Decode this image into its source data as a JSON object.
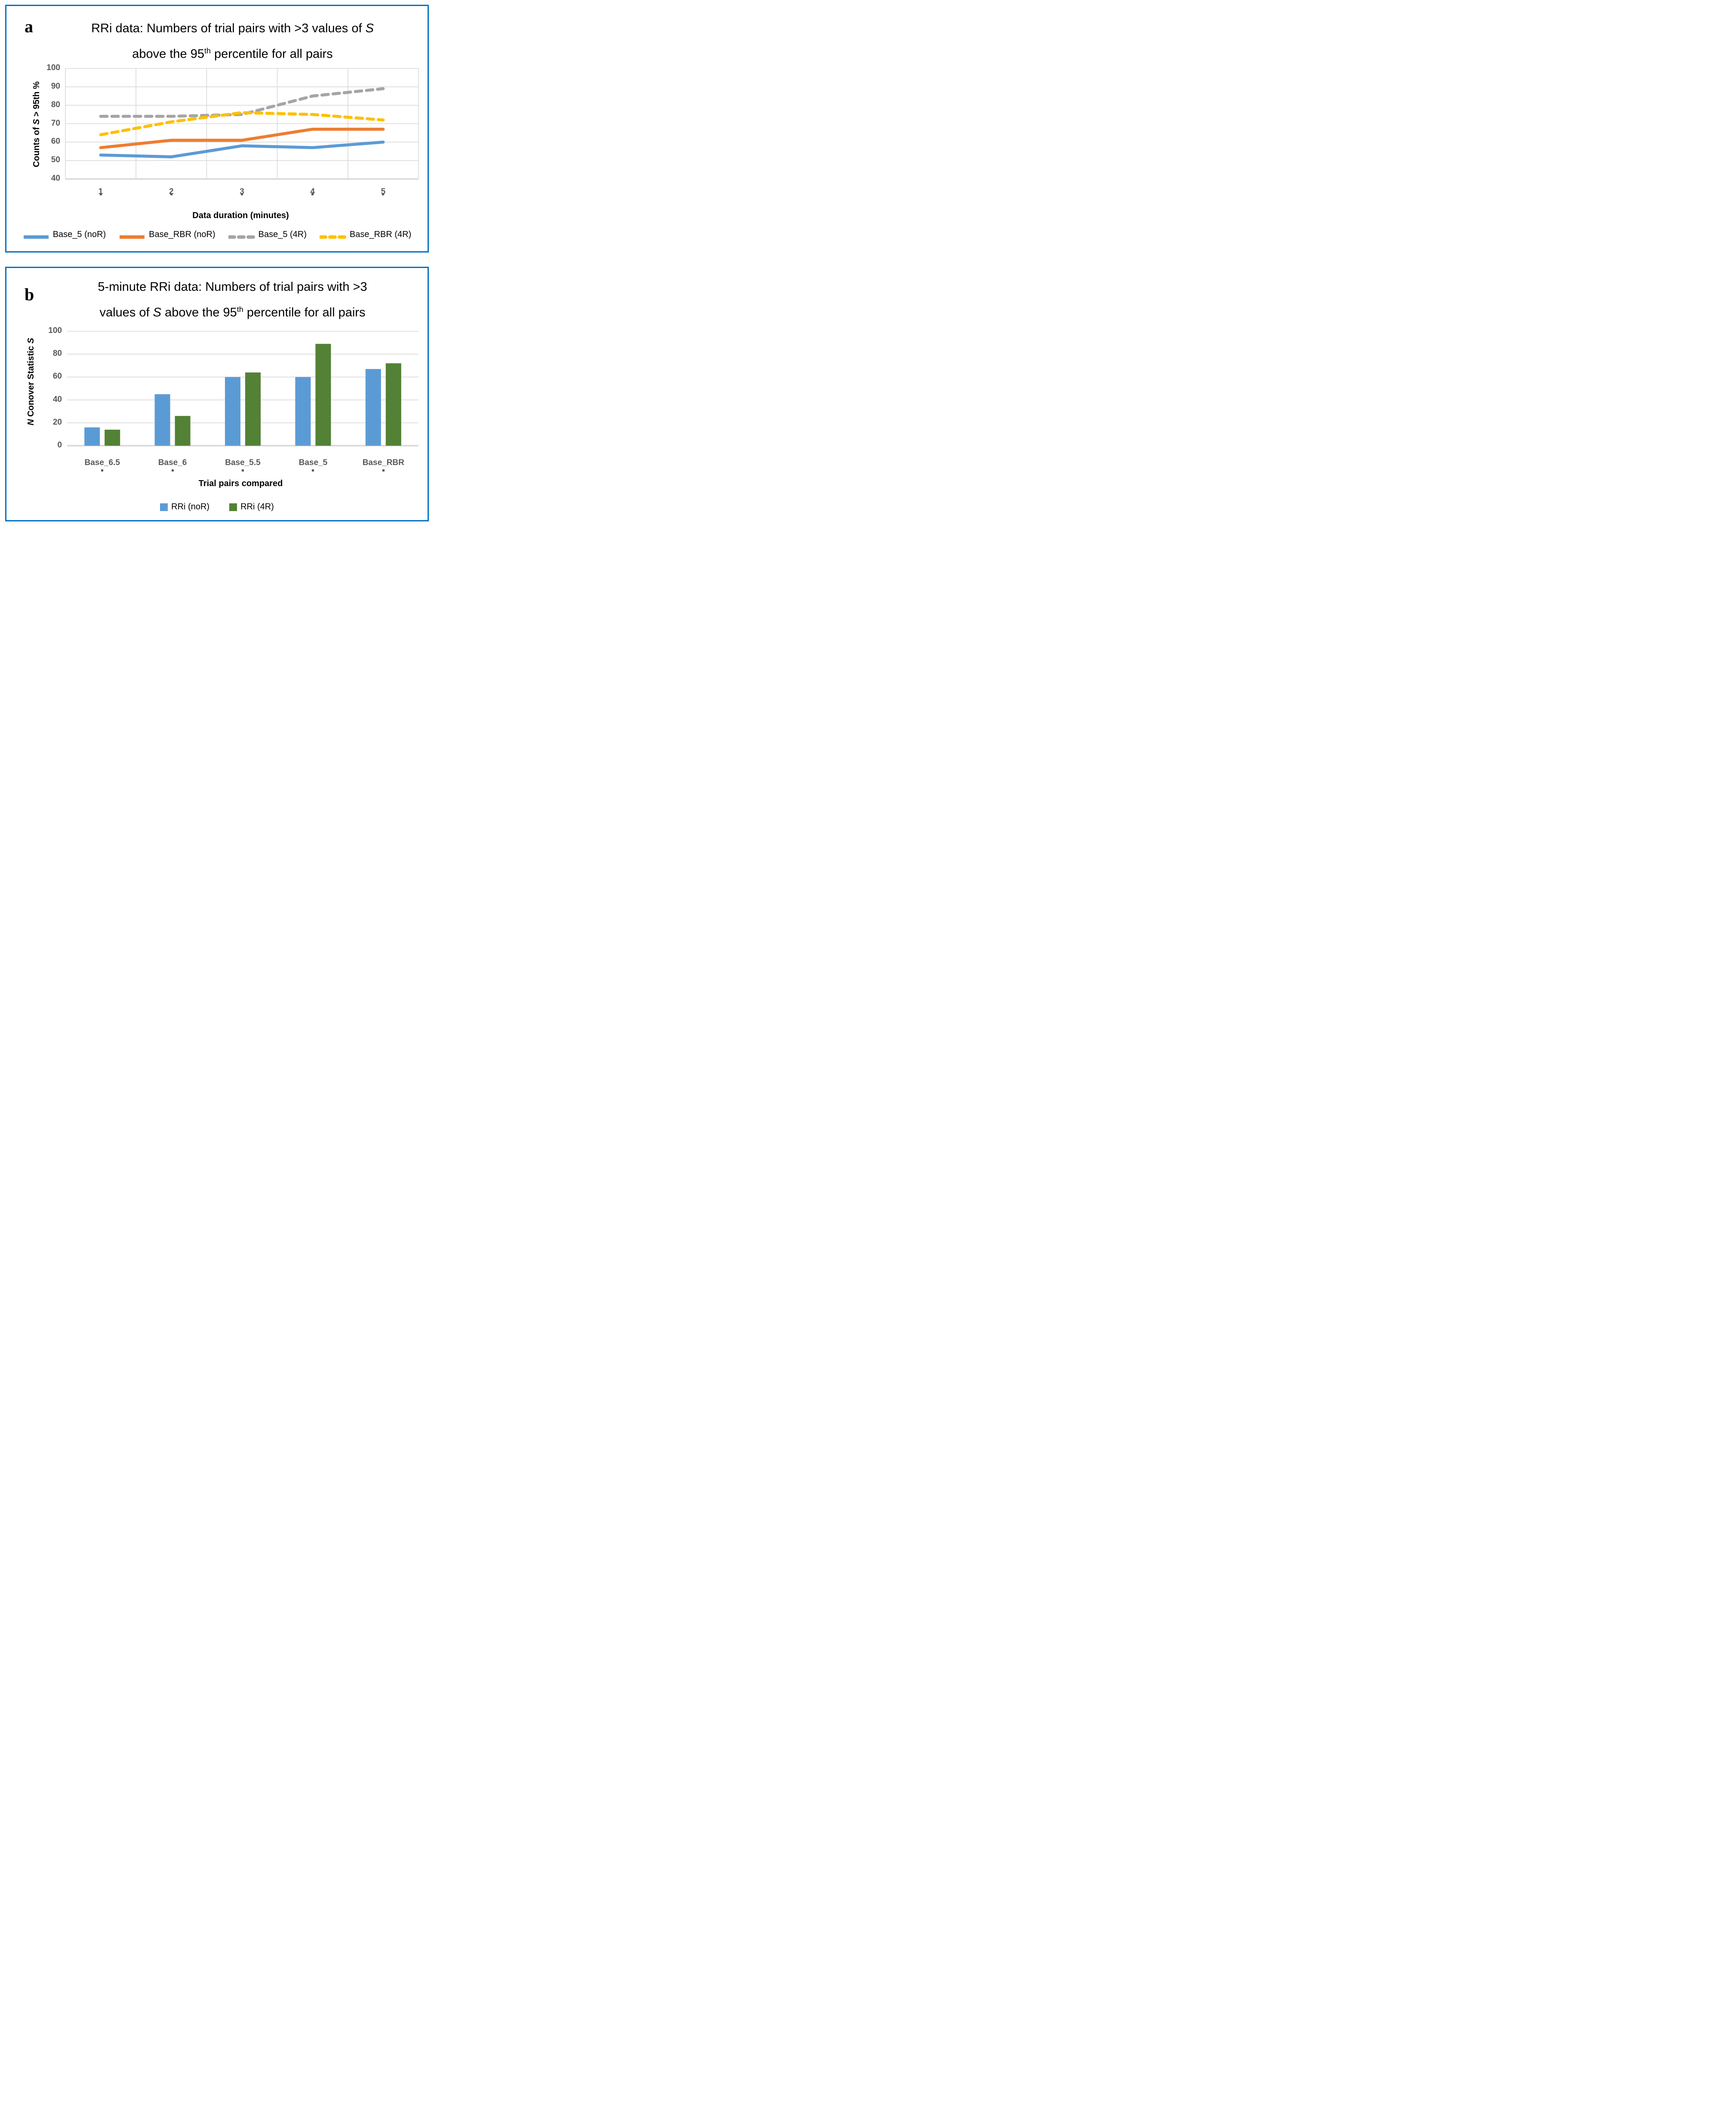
{
  "colors": {
    "panel_border": "#0070C0",
    "gridline": "#D9D9D9",
    "tick_text": "#595959",
    "blue": "#5B9BD5",
    "orange": "#ED7D31",
    "gray": "#A5A5A5",
    "yellow": "#FFC000",
    "green": "#538135"
  },
  "chart_data": [
    {
      "type": "line",
      "title": "RRi data: Numbers of trial pairs with >3 values of S above the 95th percentile for all pairs",
      "xlabel": "Data duration (minutes)",
      "ylabel": "Counts of S > 95th %",
      "x": [
        1,
        2,
        3,
        4,
        5
      ],
      "ylim": [
        40,
        100
      ],
      "yticks": [
        40,
        50,
        60,
        70,
        80,
        90,
        100
      ],
      "grid": "horizontal and vertical",
      "legend_position": "bottom",
      "series": [
        {
          "name": "Base_5 (noR)",
          "color": "#5B9BD5",
          "dash": false,
          "values": [
            53,
            52,
            58,
            57,
            60
          ]
        },
        {
          "name": "Base_RBR (noR)",
          "color": "#ED7D31",
          "dash": false,
          "values": [
            57,
            61,
            61,
            67,
            67
          ]
        },
        {
          "name": "Base_5 (4R)",
          "color": "#A5A5A5",
          "dash": true,
          "values": [
            74,
            74,
            75,
            85,
            89
          ]
        },
        {
          "name": "Base_RBR (4R)",
          "color": "#FFC000",
          "dash": true,
          "values": [
            64,
            71,
            76,
            75,
            72
          ]
        }
      ]
    },
    {
      "type": "bar",
      "title": "5-minute RRi data: Numbers of trial pairs with >3 values of S above the 95th percentile for all pairs",
      "xlabel": "Trial pairs compared",
      "ylabel": "N Conover Statistic S",
      "categories": [
        "Base_6.5",
        "Base_6",
        "Base_5.5",
        "Base_5",
        "Base_RBR"
      ],
      "ylim": [
        0,
        100
      ],
      "yticks": [
        0,
        20,
        40,
        60,
        80,
        100
      ],
      "grid": "horizontal",
      "legend_position": "bottom",
      "series": [
        {
          "name": "RRi (noR)",
          "color": "#5B9BD5",
          "values": [
            16,
            45,
            60,
            60,
            67
          ]
        },
        {
          "name": "RRi (4R)",
          "color": "#538135",
          "values": [
            14,
            26,
            64,
            89,
            72
          ]
        }
      ]
    }
  ],
  "panel_a": {
    "label": "a",
    "title": {
      "line1_pre": "RRi data: Numbers of trial pairs with >3 values of ",
      "line1_italic": "S",
      "line2_pre": "above the 95",
      "line2_sup": "th",
      "line2_post": " percentile for all pairs"
    },
    "ylabel": {
      "pre": "Counts of ",
      "italic": "S",
      "post": " > 95th %"
    },
    "xlabel": "Data duration (minutes)"
  },
  "panel_b": {
    "label": "b",
    "title": {
      "line1": "5-minute RRi data: Numbers of trial pairs with >3",
      "line2_pre": "values of ",
      "line2_italic": "S",
      "line2_mid": " above the 95",
      "line2_sup": "th",
      "line2_post": " percentile for all pairs"
    },
    "ylabel": {
      "italic1": "N",
      "mid": " Conover Statistic ",
      "italic2": "S"
    },
    "xlabel": "Trial pairs compared"
  }
}
